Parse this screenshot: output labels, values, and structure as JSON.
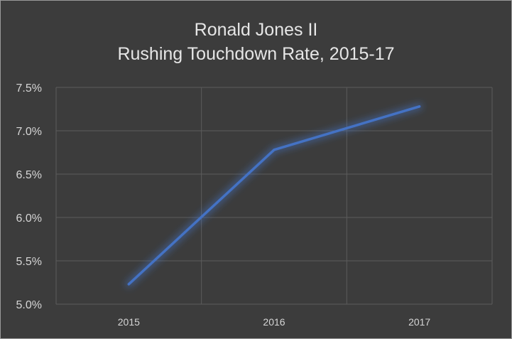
{
  "chart_data": {
    "type": "line",
    "title": "Ronald Jones II",
    "subtitle": "Rushing Touchdown Rate, 2015-17",
    "categories": [
      "2015",
      "2016",
      "2017"
    ],
    "series": [
      {
        "values": [
          5.23,
          6.78,
          7.28
        ],
        "color": "#4472c4"
      }
    ],
    "ylim": [
      5.0,
      7.5
    ],
    "yticks": [
      5.0,
      5.5,
      6.0,
      6.5,
      7.0,
      7.5
    ],
    "ytick_format": "percent_1dp",
    "grid": true,
    "legend": "none",
    "colors": {
      "background": "#3c3c3c",
      "gridline": "#5c5c5c",
      "text": "#d6d6d6"
    }
  }
}
